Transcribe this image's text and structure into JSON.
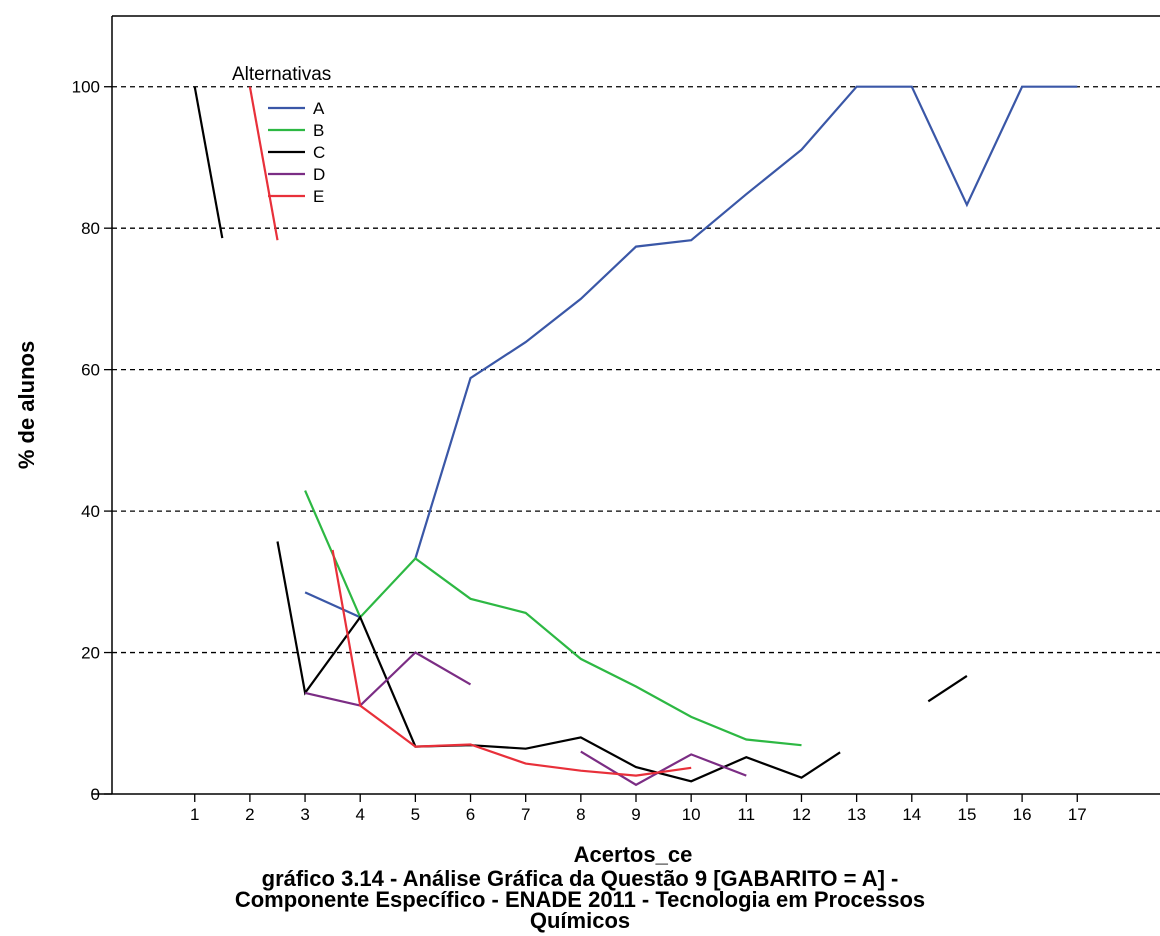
{
  "chart_data": {
    "type": "line",
    "title": "",
    "xlabel": "Acertos_ce",
    "ylabel": "% de alunos",
    "ylim": [
      0,
      110
    ],
    "yticks": [
      0,
      20,
      40,
      60,
      80,
      100
    ],
    "xlim": [
      -0.5,
      18.5
    ],
    "categories": [
      "1",
      "2",
      "3",
      "4",
      "5",
      "6",
      "7",
      "8",
      "9",
      "10",
      "11",
      "12",
      "13",
      "14",
      "15",
      "16",
      "17"
    ],
    "grid": "horizontal dashed at y ticks",
    "legend": {
      "title": "Alternativas",
      "placement": "top-left"
    },
    "series": [
      {
        "name": "A",
        "color": "#3a57a7",
        "segments": [
          [
            [
              3,
              28.5
            ],
            [
              4,
              25
            ]
          ],
          [
            [
              5,
              33.3
            ],
            [
              6,
              58.8
            ],
            [
              7,
              63.9
            ],
            [
              8,
              70
            ],
            [
              9,
              77.4
            ],
            [
              10,
              78.3
            ],
            [
              11,
              84.8
            ],
            [
              12,
              91.1
            ],
            [
              13,
              100
            ],
            [
              14,
              100
            ],
            [
              15,
              83.3
            ],
            [
              16,
              100
            ],
            [
              17,
              100
            ]
          ]
        ]
      },
      {
        "name": "B",
        "color": "#2db843",
        "segments": [
          [
            [
              3,
              42.9
            ],
            [
              4,
              25
            ],
            [
              5,
              33.3
            ],
            [
              6,
              27.6
            ],
            [
              7,
              25.6
            ],
            [
              8,
              19.1
            ],
            [
              9,
              15.2
            ],
            [
              10,
              10.9
            ],
            [
              11,
              7.7
            ],
            [
              12,
              6.9
            ]
          ]
        ]
      },
      {
        "name": "C",
        "color": "#000000",
        "segments": [
          [
            [
              1,
              100
            ],
            [
              1.5,
              78.6
            ]
          ],
          [
            [
              2.5,
              35.7
            ],
            [
              3,
              14.3
            ],
            [
              4,
              25
            ],
            [
              5,
              6.7
            ],
            [
              6,
              6.9
            ],
            [
              7,
              6.4
            ],
            [
              8,
              8
            ],
            [
              9,
              3.8
            ],
            [
              10,
              1.8
            ],
            [
              11,
              5.2
            ],
            [
              12,
              2.3
            ],
            [
              12.7,
              5.9
            ]
          ],
          [
            [
              14.3,
              13.1
            ],
            [
              15,
              16.7
            ]
          ]
        ]
      },
      {
        "name": "D",
        "color": "#7b2d84",
        "segments": [
          [
            [
              3,
              14.3
            ],
            [
              4,
              12.5
            ],
            [
              5,
              20
            ],
            [
              6,
              15.5
            ]
          ],
          [
            [
              8,
              6
            ],
            [
              9,
              1.3
            ],
            [
              10,
              5.6
            ],
            [
              11,
              2.6
            ]
          ]
        ]
      },
      {
        "name": "E",
        "color": "#e8303a",
        "segments": [
          [
            [
              2,
              100
            ],
            [
              2.5,
              78.3
            ]
          ],
          [
            [
              3.5,
              34.5
            ],
            [
              4,
              12.5
            ],
            [
              5,
              6.7
            ],
            [
              6,
              7
            ],
            [
              7,
              4.3
            ],
            [
              8,
              3.3
            ],
            [
              9,
              2.6
            ],
            [
              10,
              3.7
            ]
          ]
        ]
      }
    ]
  },
  "caption": {
    "line1": "gráfico 3.14 - Análise Gráfica da Questão 9 [GABARITO = A] -",
    "line2": "Componente Específico - ENADE 2011 - Tecnologia em Processos",
    "line3": "Químicos"
  }
}
